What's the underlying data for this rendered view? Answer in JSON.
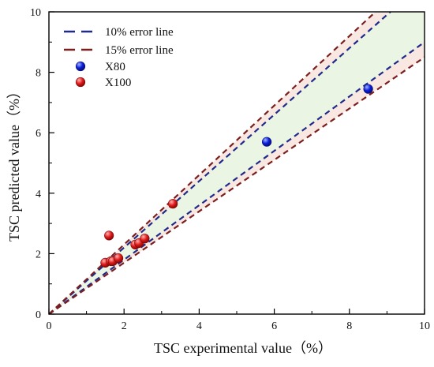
{
  "chart_data": {
    "type": "scatter",
    "title": "",
    "xlabel": "TSC experimental value（%）",
    "ylabel": "TSC predicted value（%）",
    "xlim": [
      0,
      10
    ],
    "ylim": [
      0,
      10
    ],
    "x_ticks": [
      0,
      2,
      4,
      6,
      8,
      10
    ],
    "y_ticks": [
      0,
      2,
      4,
      6,
      8,
      10
    ],
    "grid": false,
    "legend_position": "top-left",
    "legend": {
      "line_10": "10% error line",
      "line_15": "15% error line",
      "x80": "X80",
      "x100": "X100"
    },
    "colors": {
      "axis": "#000000",
      "error10": "#1F2A8A",
      "error15": "#7A1E1E",
      "band10": "#E9F5E4",
      "band15": "#F9E7DF",
      "x80": "#0A1DDB",
      "x100": "#E11A1A"
    },
    "reference_lines": [
      {
        "name": "10% error line",
        "slope": 1.1
      },
      {
        "name": "10% error line",
        "slope": 0.9
      },
      {
        "name": "15% error line",
        "slope": 1.15
      },
      {
        "name": "15% error line",
        "slope": 0.85
      }
    ],
    "series": [
      {
        "name": "X80",
        "x": [
          5.8,
          8.5
        ],
        "y": [
          5.7,
          7.45
        ]
      },
      {
        "name": "X100",
        "x": [
          1.5,
          1.6,
          1.65,
          1.7,
          1.85,
          2.3,
          2.4,
          2.55,
          3.3
        ],
        "y": [
          1.7,
          2.6,
          1.75,
          1.75,
          1.85,
          2.3,
          2.35,
          2.5,
          3.65
        ]
      }
    ]
  }
}
